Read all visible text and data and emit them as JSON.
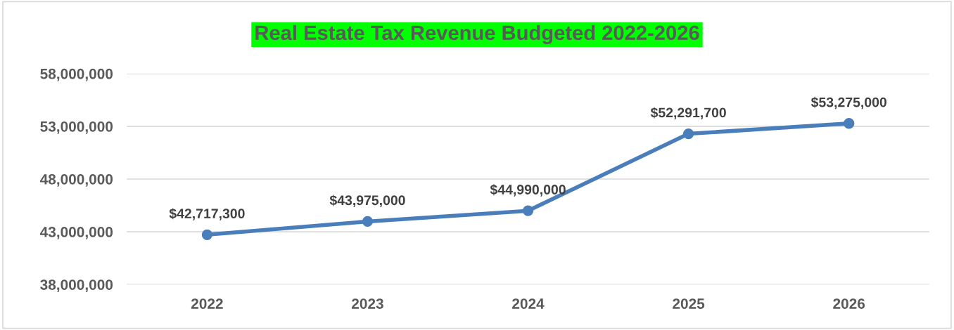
{
  "chart_data": {
    "type": "line",
    "title": "Real Estate Tax Revenue Budgeted 2022-2026",
    "categories": [
      "2022",
      "2023",
      "2024",
      "2025",
      "2026"
    ],
    "series": [
      {
        "color": "#4a7ebb",
        "values": [
          42717300,
          43975000,
          44990000,
          52291700,
          53275000
        ],
        "value_labels": [
          "$42,717,300",
          "$43,975,000",
          "$44,990,000",
          "$52,291,700",
          "$53,275,000"
        ]
      }
    ],
    "ylim": [
      38000000,
      58000000
    ],
    "yticks": [
      {
        "value": 38000000,
        "label": "38,000,000"
      },
      {
        "value": 43000000,
        "label": "43,000,000"
      },
      {
        "value": 48000000,
        "label": "48,000,000"
      },
      {
        "value": 53000000,
        "label": "53,000,000"
      },
      {
        "value": 58000000,
        "label": "58,000,000"
      }
    ],
    "grid": "y",
    "marker": "circle",
    "line_style": "solid",
    "legend": false
  }
}
